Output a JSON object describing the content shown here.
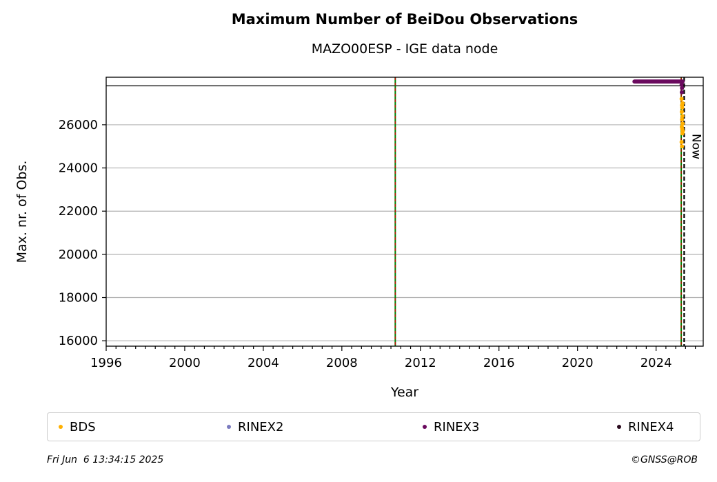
{
  "header": {
    "title": "Maximum Number of BeiDou Observations",
    "subtitle": "MAZO00ESP - IGE data node"
  },
  "footer": {
    "timestamp": "Fri Jun  6 13:34:15 2025",
    "copyright": "©GNSS@ROB"
  },
  "chart_data": {
    "type": "scatter",
    "title": "Maximum Number of BeiDou Observations",
    "subtitle": "MAZO00ESP - IGE data node",
    "xlabel": "Year",
    "ylabel": "Max. nr. of Obs.",
    "xlim": [
      1996,
      2026.4
    ],
    "ylim": [
      15750,
      28200
    ],
    "x_ticks": [
      1996,
      2000,
      2004,
      2008,
      2012,
      2016,
      2020,
      2024
    ],
    "x_minor_step": 0.5,
    "y_ticks": [
      16000,
      18000,
      20000,
      22000,
      24000,
      26000
    ],
    "grid": "horizontal",
    "legend_position": "bottom",
    "top_band_y": 27800,
    "now_label": "Now",
    "now_x": 2025.43,
    "vertical_lines": [
      {
        "x": 2010.72,
        "style": "green-red-dashed"
      },
      {
        "x": 2025.28,
        "style": "green-red-dashed"
      },
      {
        "x": 2025.43,
        "style": "black-dashed"
      }
    ],
    "series": [
      {
        "name": "BDS",
        "color": "#ffb000",
        "points": [
          [
            2025.3,
            27200
          ],
          [
            2025.32,
            26900
          ],
          [
            2025.33,
            26800
          ],
          [
            2025.31,
            26600
          ],
          [
            2025.34,
            26400
          ],
          [
            2025.32,
            26250
          ],
          [
            2025.35,
            26050
          ],
          [
            2025.31,
            25900
          ],
          [
            2025.33,
            25800
          ],
          [
            2025.36,
            25700
          ],
          [
            2025.3,
            25200
          ],
          [
            2025.32,
            25000
          ],
          [
            2025.35,
            27000
          ],
          [
            2025.34,
            25600
          ]
        ]
      },
      {
        "name": "RINEX2",
        "color": "#7b7bbf",
        "points": []
      },
      {
        "name": "RINEX3",
        "color": "#6a0a5e",
        "segment": {
          "x_start": 2022.9,
          "x_end": 2025.35,
          "y": 28000
        },
        "points": [
          [
            2025.3,
            27850
          ],
          [
            2025.32,
            27700
          ],
          [
            2025.31,
            27500
          ]
        ]
      },
      {
        "name": "RINEX4",
        "color": "#2a0a1e",
        "points": []
      }
    ]
  }
}
